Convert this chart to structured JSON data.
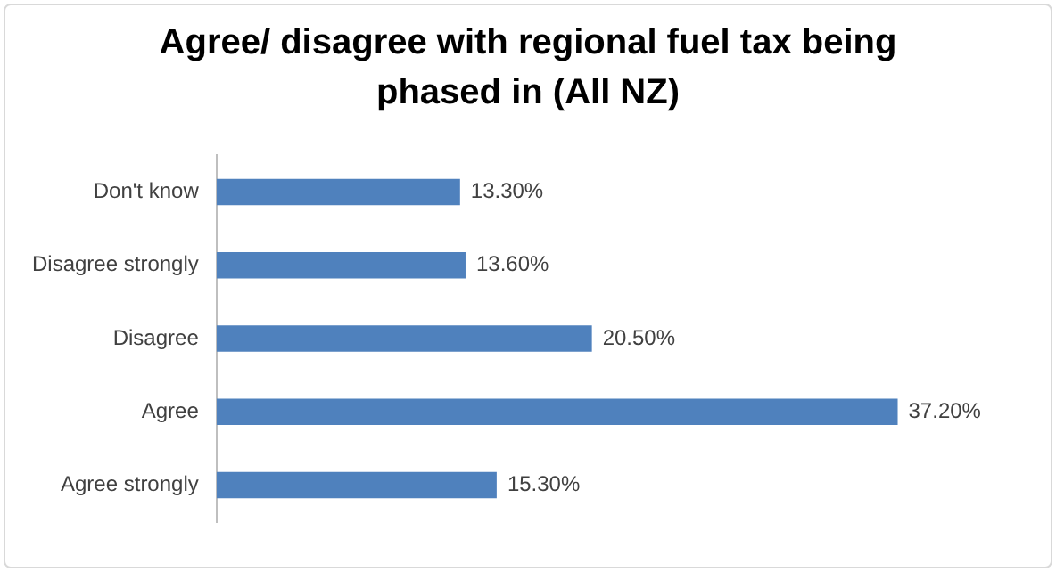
{
  "chart_data": {
    "type": "bar",
    "orientation": "horizontal",
    "title": "Agree/ disagree with regional fuel tax being phased in (All NZ)",
    "categories": [
      "Don't know",
      "Disagree strongly",
      "Disagree",
      "Agree",
      "Agree strongly"
    ],
    "values": [
      13.3,
      13.6,
      20.5,
      37.2,
      15.3
    ],
    "value_labels": [
      "13.30%",
      "13.60%",
      "20.50%",
      "37.20%",
      "15.30%"
    ],
    "color": "#4f81bd",
    "tick_labels": "y"
  }
}
